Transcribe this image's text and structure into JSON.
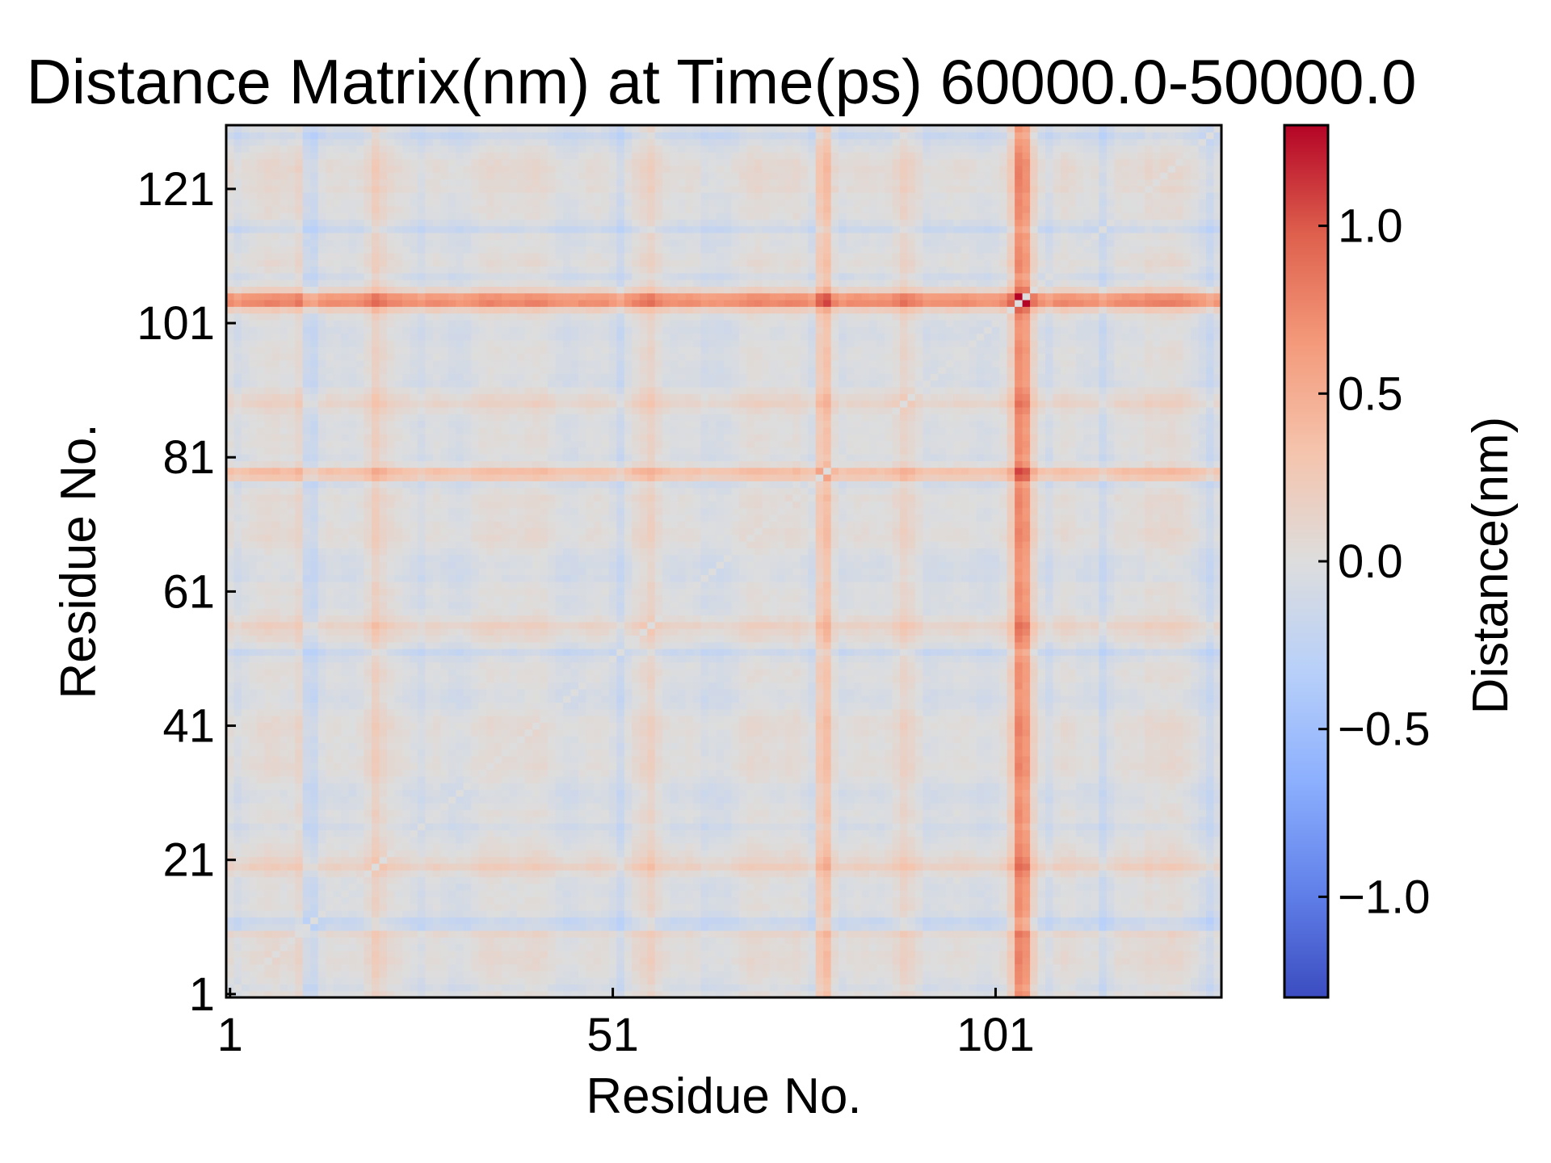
{
  "chart_data": {
    "type": "heatmap",
    "title": "Distance Matrix(nm) at Time(ps) 60000.0-50000.0",
    "xlabel": "Residue No.",
    "ylabel": "Residue No.",
    "x_range": [
      1,
      130
    ],
    "y_range": [
      1,
      130
    ],
    "x_ticks": [
      {
        "value": 1,
        "label": "1"
      },
      {
        "value": 51,
        "label": "51"
      },
      {
        "value": 101,
        "label": "101"
      }
    ],
    "y_ticks": [
      {
        "value": 1,
        "label": "1"
      },
      {
        "value": 21,
        "label": "21"
      },
      {
        "value": 41,
        "label": "41"
      },
      {
        "value": 61,
        "label": "61"
      },
      {
        "value": 81,
        "label": "81"
      },
      {
        "value": 101,
        "label": "101"
      },
      {
        "value": 121,
        "label": "121"
      }
    ],
    "colormap": "coolwarm",
    "vmin": -1.3,
    "vmax": 1.3,
    "colorbar": {
      "label": "Distance(nm)",
      "ticks": [
        {
          "value": 1.0,
          "label": "1.0"
        },
        {
          "value": 0.5,
          "label": "0.5"
        },
        {
          "value": 0.0,
          "label": "0.0"
        },
        {
          "value": -0.5,
          "label": "−0.5"
        },
        {
          "value": -1.0,
          "label": "−1.0"
        }
      ]
    },
    "positive_bands": [
      {
        "residue": 104,
        "strength": 0.55
      },
      {
        "residue": 105,
        "strength": 0.45
      },
      {
        "residue": 79,
        "strength": 0.35
      },
      {
        "residue": 78,
        "strength": 0.22
      },
      {
        "residue": 10,
        "strength": 0.18
      },
      {
        "residue": 11,
        "strength": 0.12
      },
      {
        "residue": 20,
        "strength": 0.14
      },
      {
        "residue": 26,
        "strength": 0.1
      },
      {
        "residue": 56,
        "strength": 0.1
      },
      {
        "residue": 89,
        "strength": 0.08
      },
      {
        "residue": 114,
        "strength": 0.08
      },
      {
        "residue": 121,
        "strength": 0.06
      }
    ],
    "negative_bands": [
      {
        "residue": 11,
        "strength": -0.22
      },
      {
        "residue": 26,
        "strength": -0.18
      },
      {
        "residue": 52,
        "strength": -0.14
      },
      {
        "residue": 77,
        "strength": -0.14
      },
      {
        "residue": 12,
        "strength": -0.1
      },
      {
        "residue": 108,
        "strength": -0.1
      },
      {
        "residue": 115,
        "strength": -0.12
      },
      {
        "residue": 129,
        "strength": -0.12
      },
      {
        "residue": 2,
        "strength": -0.08
      },
      {
        "residue": 63,
        "strength": -0.06
      },
      {
        "residue": 92,
        "strength": -0.06
      }
    ]
  }
}
